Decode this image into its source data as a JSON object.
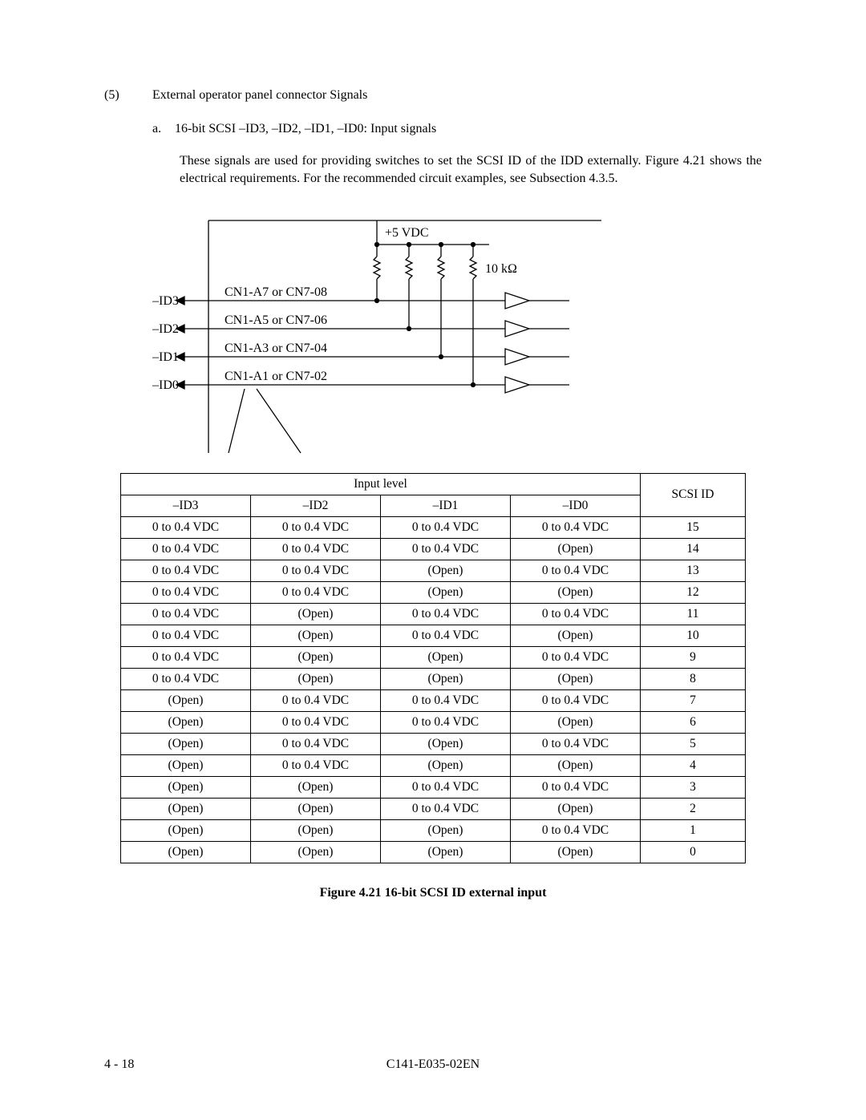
{
  "section": {
    "number": "(5)",
    "title": "External operator panel connector Signals"
  },
  "subitem": {
    "label": "a.",
    "text": "16-bit SCSI –ID3, –ID2, –ID1, –ID0:  Input signals"
  },
  "body": "These signals are used for providing switches to set the SCSI ID of the IDD externally.  Figure 4.21 shows the electrical requirements.  For the recommended circuit examples, see Subsection 4.3.5.",
  "diagram": {
    "vdc_label": "+5 VDC",
    "resistor_label": "10 kΩ",
    "signals": [
      {
        "name": "–ID3",
        "conn": "CN1-A7 or CN7-08"
      },
      {
        "name": "–ID2",
        "conn": "CN1-A5 or CN7-06"
      },
      {
        "name": "–ID1",
        "conn": "CN1-A3 or CN7-04"
      },
      {
        "name": "–ID0",
        "conn": "CN1-A1 or CN7-02"
      }
    ],
    "colors": {
      "stroke": "#000000",
      "fill": "#ffffff"
    },
    "stroke_width": 1.3
  },
  "table": {
    "header_group": "Input level",
    "header_scsi": "SCSI ID",
    "columns": [
      "–ID3",
      "–ID2",
      "–ID1",
      "–ID0"
    ],
    "low": "0 to 0.4 VDC",
    "open": "(Open)",
    "rows": [
      [
        "0 to 0.4 VDC",
        "0 to 0.4 VDC",
        "0 to 0.4 VDC",
        "0 to 0.4 VDC",
        "15"
      ],
      [
        "0 to 0.4 VDC",
        "0 to 0.4 VDC",
        "0 to 0.4 VDC",
        "(Open)",
        "14"
      ],
      [
        "0 to 0.4 VDC",
        "0 to 0.4 VDC",
        "(Open)",
        "0 to 0.4 VDC",
        "13"
      ],
      [
        "0 to 0.4 VDC",
        "0 to 0.4 VDC",
        "(Open)",
        "(Open)",
        "12"
      ],
      [
        "0 to 0.4 VDC",
        "(Open)",
        "0 to 0.4 VDC",
        "0 to 0.4 VDC",
        "11"
      ],
      [
        "0 to 0.4 VDC",
        "(Open)",
        "0 to 0.4 VDC",
        "(Open)",
        "10"
      ],
      [
        "0 to 0.4 VDC",
        "(Open)",
        "(Open)",
        "0 to 0.4 VDC",
        "9"
      ],
      [
        "0 to 0.4 VDC",
        "(Open)",
        "(Open)",
        "(Open)",
        "8"
      ],
      [
        "(Open)",
        "0 to 0.4 VDC",
        "0 to 0.4 VDC",
        "0 to 0.4 VDC",
        "7"
      ],
      [
        "(Open)",
        "0 to 0.4 VDC",
        "0 to 0.4 VDC",
        "(Open)",
        "6"
      ],
      [
        "(Open)",
        "0 to 0.4 VDC",
        "(Open)",
        "0 to 0.4 VDC",
        "5"
      ],
      [
        "(Open)",
        "0 to 0.4 VDC",
        "(Open)",
        "(Open)",
        "4"
      ],
      [
        "(Open)",
        "(Open)",
        "0 to 0.4 VDC",
        "0 to 0.4 VDC",
        "3"
      ],
      [
        "(Open)",
        "(Open)",
        "0 to 0.4 VDC",
        "(Open)",
        "2"
      ],
      [
        "(Open)",
        "(Open)",
        "(Open)",
        "0 to 0.4 VDC",
        "1"
      ],
      [
        "(Open)",
        "(Open)",
        "(Open)",
        "(Open)",
        "0"
      ]
    ]
  },
  "caption": "Figure 4.21  16-bit SCSI ID external input",
  "footer": {
    "left": "4 - 18",
    "center": "C141-E035-02EN"
  }
}
